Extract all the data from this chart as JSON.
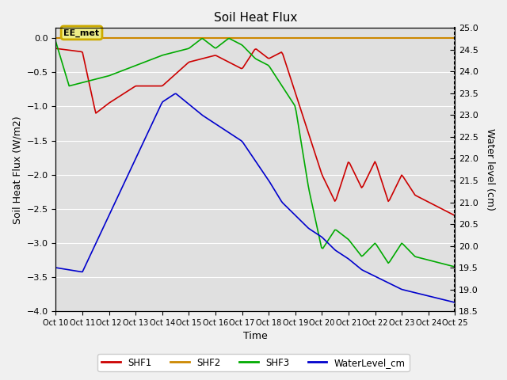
{
  "title": "Soil Heat Flux",
  "xlabel": "Time",
  "ylabel_left": "Soil Heat Flux (W/m2)",
  "ylabel_right": "Water level (cm)",
  "ylim_left": [
    -4.0,
    0.15
  ],
  "ylim_right": [
    18.5,
    25.0
  ],
  "fig_bg_color": "#f0f0f0",
  "plot_bg_color": "#e0e0e0",
  "xtick_labels": [
    "Oct 10",
    "Oct 11",
    "Oct 12",
    "Oct 13",
    "Oct 14",
    "Oct 15",
    "Oct 16",
    "Oct 17",
    "Oct 18",
    "Oct 19",
    "Oct 20",
    "Oct 21",
    "Oct 22",
    "Oct 23",
    "Oct 24",
    "Oct 25"
  ],
  "shf1_color": "#cc0000",
  "shf2_color": "#cc8800",
  "shf3_color": "#00aa00",
  "wl_color": "#0000cc",
  "annotation_text": "EE_met",
  "annotation_box_edge_color": "#ccaa00",
  "annotation_box_face_color": "#eeee88"
}
